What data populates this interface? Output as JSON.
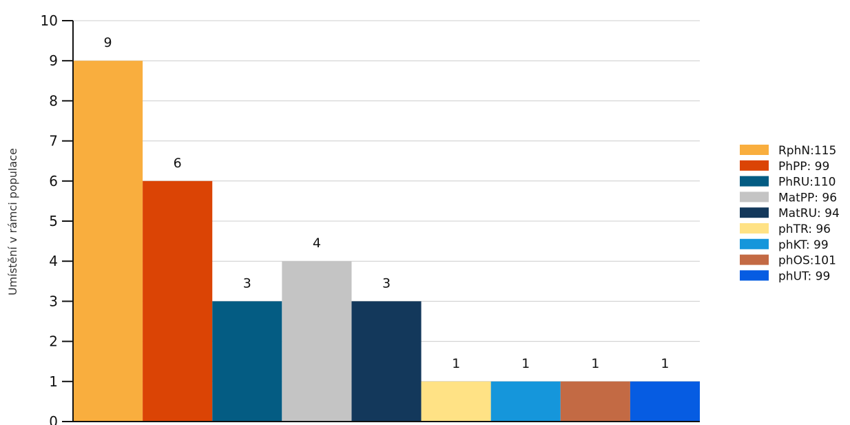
{
  "chart_data": {
    "type": "bar",
    "title": "",
    "xlabel": "",
    "ylabel": "Umístění v rámci populace",
    "ylim": [
      0,
      10
    ],
    "yticks": [
      0,
      1,
      2,
      3,
      4,
      5,
      6,
      7,
      8,
      9,
      10
    ],
    "grid": true,
    "legend_position": "right",
    "series": [
      {
        "name": "RphN:115",
        "value": 9,
        "color": "#F9AE3E"
      },
      {
        "name": "PhPP: 99",
        "value": 6,
        "color": "#DB4405"
      },
      {
        "name": "PhRU:110",
        "value": 3,
        "color": "#045C83"
      },
      {
        "name": "MatPP: 96",
        "value": 4,
        "color": "#C4C4C4"
      },
      {
        "name": "MatRU: 94",
        "value": 3,
        "color": "#13385B"
      },
      {
        "name": "phTR: 96",
        "value": 1,
        "color": "#FFE285"
      },
      {
        "name": "phKT: 99",
        "value": 1,
        "color": "#1596DB"
      },
      {
        "name": "phOS:101",
        "value": 1,
        "color": "#C36A44"
      },
      {
        "name": "phUT: 99",
        "value": 1,
        "color": "#065CE2"
      }
    ]
  }
}
